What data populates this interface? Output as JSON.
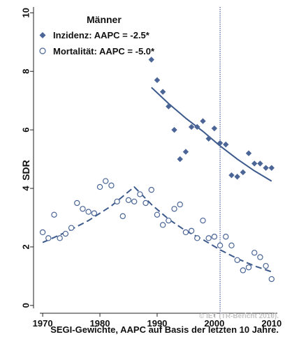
{
  "chart_data": {
    "type": "scatter",
    "title": "",
    "xlabel": "",
    "ylabel": "SDR",
    "xlim": [
      1969.5,
      2011
    ],
    "ylim": [
      -0.1,
      10.2
    ],
    "x_ticks": [
      1970,
      1980,
      1990,
      2000,
      2010
    ],
    "x_tick_labels": [
      "1970",
      "1980",
      "1990",
      "2000",
      "2010"
    ],
    "y_ticks": [
      0,
      2,
      4,
      6,
      8,
      10
    ],
    "y_tick_labels": [
      "0",
      "2",
      "4",
      "6",
      "8",
      "10"
    ],
    "grid": false,
    "legend": {
      "title": "Männer",
      "position": "top-left",
      "entries": [
        "Inzidenz: AAPC = -2.5*",
        "Mortalität: AAPC = -5.0*"
      ]
    },
    "reference_line_x": 2001,
    "series": [
      {
        "name": "Inzidenz: AAPC = -2.5*",
        "marker": "filled-diamond",
        "color": "#4a6596",
        "x": [
          1989,
          1990,
          1991,
          1992,
          1993,
          1994,
          1995,
          1996,
          1997,
          1998,
          1999,
          2000,
          2001,
          2002,
          2003,
          2004,
          2005,
          2006,
          2007,
          2008,
          2009,
          2010
        ],
        "y": [
          8.4,
          7.7,
          7.3,
          6.8,
          6.0,
          5.0,
          5.25,
          6.1,
          6.1,
          6.3,
          5.7,
          6.05,
          5.55,
          5.5,
          4.45,
          4.4,
          4.55,
          5.2,
          4.85,
          4.85,
          4.7,
          4.7
        ]
      },
      {
        "name": "Mortalität: AAPC = -5.0*",
        "marker": "hollow-circle",
        "color": "#4a6596",
        "x": [
          1970,
          1971,
          1972,
          1973,
          1974,
          1975,
          1976,
          1977,
          1978,
          1979,
          1980,
          1981,
          1982,
          1983,
          1984,
          1985,
          1986,
          1987,
          1988,
          1989,
          1990,
          1991,
          1992,
          1993,
          1994,
          1995,
          1996,
          1997,
          1998,
          1999,
          2000,
          2001,
          2002,
          2003,
          2004,
          2005,
          2006,
          2007,
          2008,
          2009,
          2010
        ],
        "y": [
          2.5,
          2.3,
          3.1,
          2.3,
          2.45,
          2.65,
          3.5,
          3.3,
          3.2,
          3.15,
          4.05,
          4.25,
          4.1,
          3.55,
          3.05,
          3.6,
          3.55,
          3.8,
          3.5,
          3.95,
          3.1,
          2.75,
          2.9,
          3.3,
          3.45,
          2.5,
          2.55,
          2.3,
          2.9,
          2.3,
          2.35,
          2.05,
          2.35,
          2.05,
          1.55,
          1.2,
          1.3,
          1.8,
          1.65,
          1.35,
          0.9
        ]
      }
    ],
    "trend_lines": [
      {
        "name": "Inzidenz trend",
        "style": "solid",
        "color": "#3d5a8c",
        "x": [
          1989,
          1992,
          1995,
          1998,
          2001,
          2004,
          2007,
          2010
        ],
        "y": [
          7.45,
          6.9,
          6.4,
          5.95,
          5.45,
          5.0,
          4.6,
          4.25
        ]
      },
      {
        "name": "Mortalität trend",
        "style": "dashed",
        "color": "#3d5a8c",
        "x": [
          1970,
          1974,
          1978,
          1982,
          1986,
          1989,
          1992,
          1995,
          1998,
          2001,
          2004,
          2007,
          2010
        ],
        "y": [
          2.15,
          2.5,
          2.9,
          3.4,
          4.05,
          3.45,
          2.95,
          2.55,
          2.25,
          1.9,
          1.6,
          1.35,
          1.15
        ]
      }
    ],
    "annotations": {
      "credit": "© IET (TR-Bericht 2010).",
      "footnote": "SEGI-Gewichte, AAPC auf Basis der letzten 10 Jahre."
    }
  }
}
